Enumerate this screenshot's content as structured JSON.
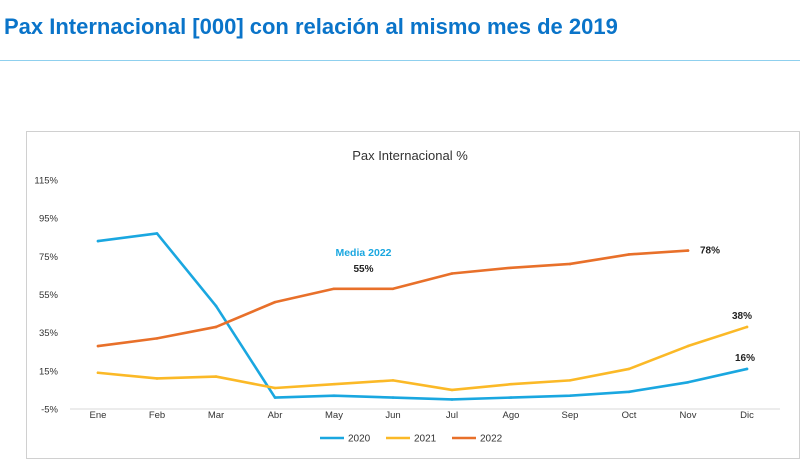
{
  "page": {
    "title": "Pax Internacional [000] con relación al mismo mes de 2019"
  },
  "chart_data": {
    "type": "line",
    "title": "Pax Internacional %",
    "xlabel": "",
    "ylabel": "",
    "categories": [
      "Ene",
      "Feb",
      "Mar",
      "Abr",
      "May",
      "Jun",
      "Jul",
      "Ago",
      "Sep",
      "Oct",
      "Nov",
      "Dic"
    ],
    "y_ticks": [
      "-5%",
      "15%",
      "35%",
      "55%",
      "75%",
      "95%",
      "115%"
    ],
    "ylim": [
      -5,
      115
    ],
    "grid": false,
    "legend_position": "bottom",
    "series": [
      {
        "name": "2020",
        "color": "#1aa7e0",
        "values": [
          83,
          87,
          49,
          1,
          2,
          1,
          0,
          1,
          2,
          4,
          9,
          16
        ]
      },
      {
        "name": "2021",
        "color": "#fbb927",
        "values": [
          14,
          11,
          12,
          6,
          8,
          10,
          5,
          8,
          10,
          16,
          28,
          38
        ]
      },
      {
        "name": "2022",
        "color": "#e8702a",
        "values": [
          28,
          32,
          38,
          51,
          58,
          58,
          66,
          69,
          71,
          76,
          78,
          null
        ]
      }
    ],
    "annotations": [
      {
        "text": "Media 2022",
        "color": "#1aa7e0"
      },
      {
        "text": "55%"
      },
      {
        "text": "78%"
      },
      {
        "text": "38%"
      },
      {
        "text": "16%"
      }
    ]
  }
}
